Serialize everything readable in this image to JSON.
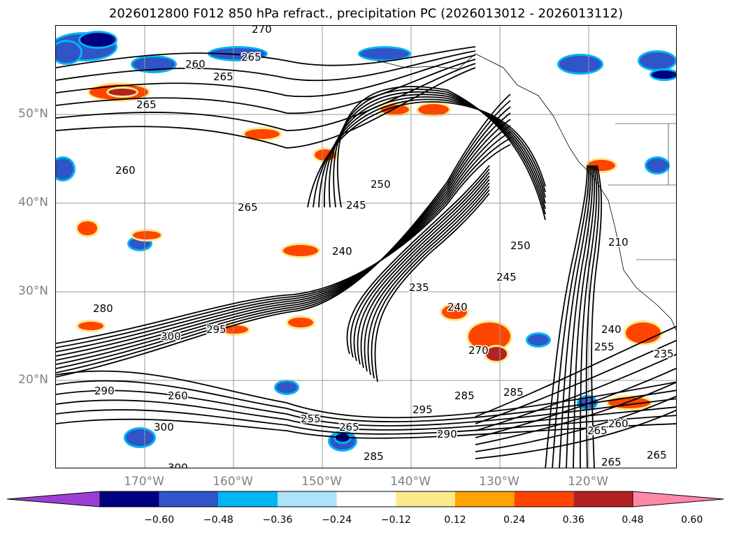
{
  "title": "2026012800 F012 850 hPa refract., precipitation PC (2026013012 - 2026013112)",
  "map": {
    "projection": "lat-lon",
    "lat_labels": [
      {
        "deg": 50,
        "text": "50°N"
      },
      {
        "deg": 40,
        "text": "40°N"
      },
      {
        "deg": 30,
        "text": "30°N"
      },
      {
        "deg": 20,
        "text": "20°N"
      }
    ],
    "lon_labels": [
      {
        "deg": -170,
        "text": "170°W"
      },
      {
        "deg": -160,
        "text": "160°W"
      },
      {
        "deg": -150,
        "text": "150°W"
      },
      {
        "deg": -140,
        "text": "140°W"
      },
      {
        "deg": -130,
        "text": "130°W"
      },
      {
        "deg": -120,
        "text": "120°W"
      }
    ],
    "gridline_color": "#9a9a9a",
    "label_color": "#808080",
    "contour_color": "#000000",
    "contour_labels": [
      "265",
      "260",
      "265",
      "270",
      "265",
      "260",
      "265",
      "250",
      "245",
      "240",
      "235",
      "250",
      "245",
      "240",
      "280",
      "295",
      "300",
      "290",
      "285",
      "260",
      "255",
      "265",
      "300",
      "285",
      "295",
      "290",
      "300",
      "285",
      "270",
      "255",
      "240",
      "235",
      "265",
      "265",
      "260",
      "265",
      "210"
    ]
  },
  "colorbar": {
    "extend": "both",
    "colors": [
      "#9b3fd4",
      "#000080",
      "#2f55c8",
      "#00b6f2",
      "#ade2fb",
      "#ffffff",
      "#fce98a",
      "#ffa300",
      "#ff4500",
      "#b22222",
      "#ff88aa"
    ],
    "ticks": [
      "−0.60",
      "−0.48",
      "−0.36",
      "−0.24",
      "−0.12",
      "0.12",
      "0.24",
      "0.36",
      "0.48",
      "0.60"
    ]
  }
}
